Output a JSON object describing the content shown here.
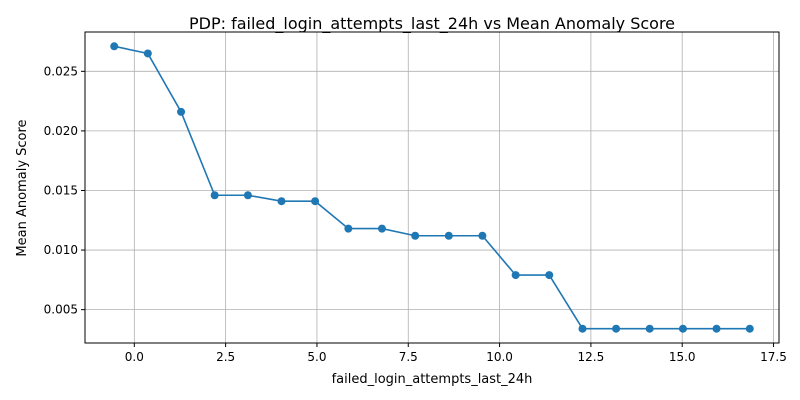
{
  "chart_data": {
    "type": "line",
    "title": "PDP: failed_login_attempts_last_24h vs Mean Anomaly Score",
    "xlabel": "failed_login_attempts_last_24h",
    "ylabel": "Mean Anomaly Score",
    "xlim": [
      -1.35,
      17.65
    ],
    "ylim": [
      0.0022,
      0.0283
    ],
    "xticks": [
      0.0,
      2.5,
      5.0,
      7.5,
      10.0,
      12.5,
      15.0,
      17.5
    ],
    "xtick_labels": [
      "0.0",
      "2.5",
      "5.0",
      "7.5",
      "10.0",
      "12.5",
      "15.0",
      "17.5"
    ],
    "yticks": [
      0.005,
      0.01,
      0.015,
      0.02,
      0.025
    ],
    "ytick_labels": [
      "0.005",
      "0.010",
      "0.015",
      "0.020",
      "0.025"
    ],
    "grid": true,
    "color": "#1f77b4",
    "series": [
      {
        "x": [
          -0.55,
          0.37,
          1.28,
          2.2,
          3.11,
          4.03,
          4.95,
          5.86,
          6.78,
          7.69,
          8.61,
          9.53,
          10.44,
          11.36,
          12.27,
          13.19,
          14.11,
          15.02,
          15.94,
          16.85
        ],
        "y": [
          0.0271,
          0.0265,
          0.0216,
          0.0146,
          0.0146,
          0.0141,
          0.0141,
          0.0118,
          0.0118,
          0.0112,
          0.0112,
          0.0112,
          0.0079,
          0.0079,
          0.0034,
          0.0034,
          0.0034,
          0.0034,
          0.0034,
          0.0034
        ]
      }
    ]
  }
}
